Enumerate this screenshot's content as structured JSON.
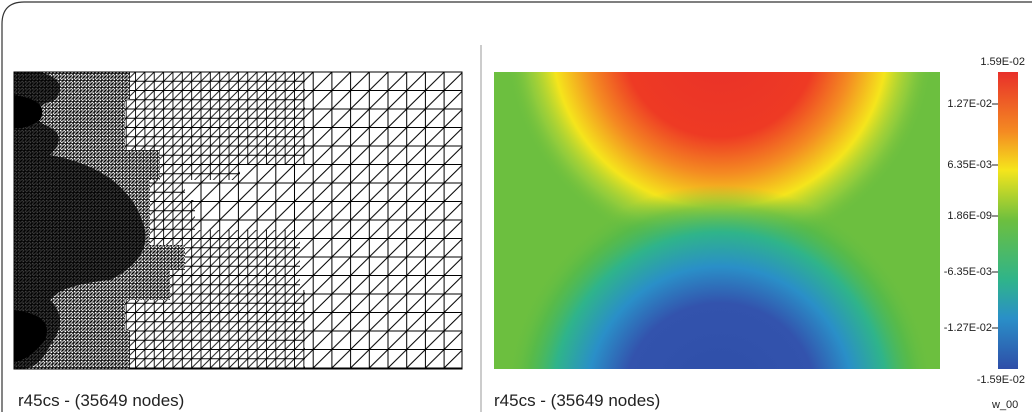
{
  "left_panel": {
    "caption": "r45cs - (35649 nodes)"
  },
  "right_panel": {
    "caption": "r45cs - (35649 nodes)",
    "colorbar": {
      "labels": [
        "1.59E-02",
        "1.27E-02",
        "6.35E-03",
        "1.86E-09",
        "-6.35E-03",
        "-1.27E-02",
        "-1.59E-02"
      ]
    }
  },
  "corner_label": "w_00"
}
